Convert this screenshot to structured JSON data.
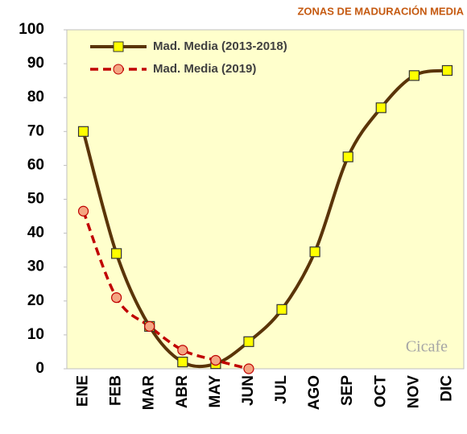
{
  "chart_data": {
    "type": "line",
    "title": "ZONAS DE MADURACIÓN MEDIA",
    "categories": [
      "ENE",
      "FEB",
      "MAR",
      "ABR",
      "MAY",
      "JUN",
      "JUL",
      "AGO",
      "SEP",
      "OCT",
      "NOV",
      "DIC"
    ],
    "series": [
      {
        "name": "Mad. Media (2013-2018)",
        "color": "#5a3408",
        "marker_color": "#ffff00",
        "values": [
          70,
          34,
          12.5,
          2,
          1.5,
          8,
          17.5,
          34.5,
          62.5,
          77,
          86.5,
          88
        ]
      },
      {
        "name": "Mad. Media (2019)",
        "color": "#c00000",
        "marker_color": "#f4a582",
        "values": [
          46.5,
          21,
          12.5,
          5.5,
          2.5,
          0,
          null,
          null,
          null,
          null,
          null,
          null
        ]
      }
    ],
    "ylim": [
      0,
      100
    ],
    "yticks": [
      0,
      10,
      20,
      30,
      40,
      50,
      60,
      70,
      80,
      90,
      100
    ],
    "grid": false,
    "smooth": true,
    "legend": "top-left",
    "annotation": "Cicafe"
  }
}
